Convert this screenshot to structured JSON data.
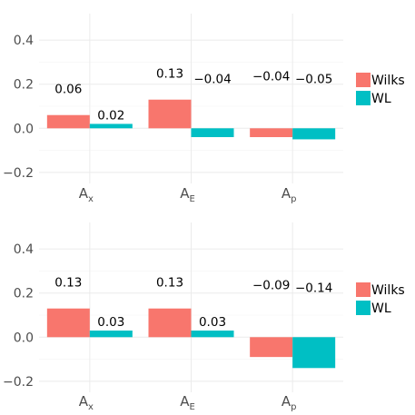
{
  "colors": {
    "Wilks": "#F8766D",
    "WL": "#00BFC4"
  },
  "legend": [
    {
      "key": "Wilks",
      "label": "Wilks"
    },
    {
      "key": "WL",
      "label": "WL"
    }
  ],
  "chart_data": [
    {
      "type": "bar",
      "categories": [
        {
          "base": "A",
          "sub": "x"
        },
        {
          "base": "A",
          "sub": "E"
        },
        {
          "base": "A",
          "sub": "p"
        }
      ],
      "series": [
        {
          "name": "Wilks",
          "values": [
            0.06,
            0.13,
            -0.04
          ],
          "labels": [
            "0.06",
            "0.13",
            "−0.04"
          ]
        },
        {
          "name": "WL",
          "values": [
            0.02,
            -0.04,
            -0.05
          ],
          "labels": [
            "0.02",
            "−0.04",
            "−0.05"
          ]
        }
      ],
      "ylim": [
        -0.25,
        0.52
      ],
      "yticks": [
        -0.2,
        0.0,
        0.2,
        0.4
      ],
      "ytick_labels": [
        "−0.2",
        "0.0",
        "0.2",
        "0.4"
      ],
      "grid": true,
      "legend_position": "right"
    },
    {
      "type": "bar",
      "categories": [
        {
          "base": "A",
          "sub": "x"
        },
        {
          "base": "A",
          "sub": "E"
        },
        {
          "base": "A",
          "sub": "p"
        }
      ],
      "series": [
        {
          "name": "Wilks",
          "values": [
            0.13,
            0.13,
            -0.09
          ],
          "labels": [
            "0.13",
            "0.13",
            "−0.09"
          ]
        },
        {
          "name": "WL",
          "values": [
            0.03,
            0.03,
            -0.14
          ],
          "labels": [
            "0.03",
            "0.03",
            "−0.14"
          ]
        }
      ],
      "ylim": [
        -0.25,
        0.52
      ],
      "yticks": [
        -0.2,
        0.0,
        0.2,
        0.4
      ],
      "ytick_labels": [
        "−0.2",
        "0.0",
        "0.2",
        "0.4"
      ],
      "grid": true,
      "legend_position": "right"
    }
  ]
}
